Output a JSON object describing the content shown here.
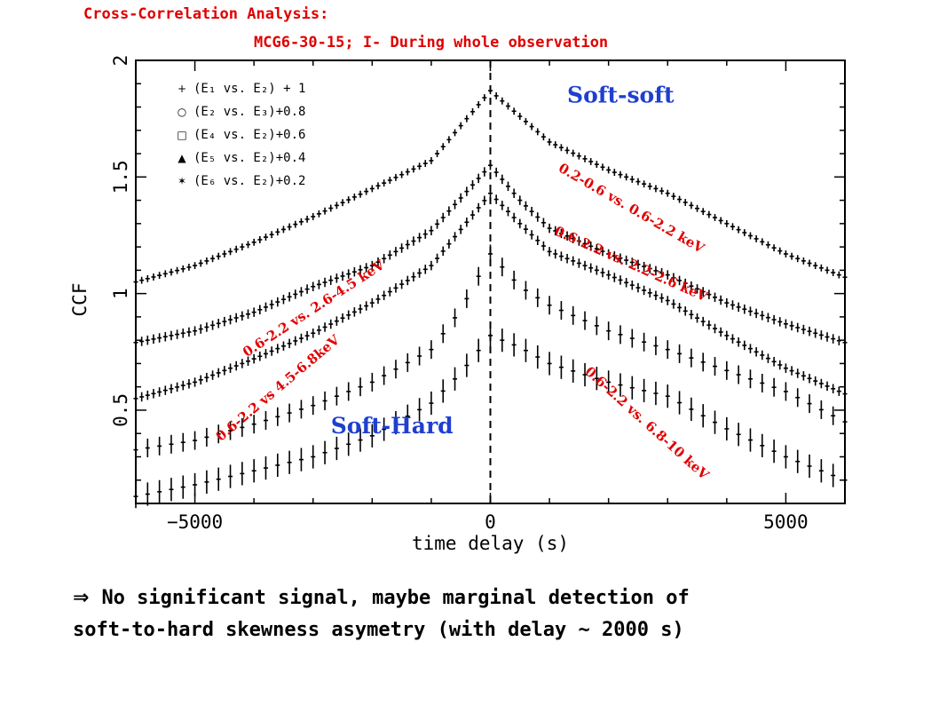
{
  "header": {
    "title_line1": "Cross-Correlation Analysis:",
    "title_line2": "MCG6-30-15; I- During whole observation"
  },
  "conclusion": {
    "arrow": "⇒",
    "line1": "No significant signal, maybe marginal detection of",
    "line2": "soft-to-hard skewness asymetry (with delay ~ 2000 s)"
  },
  "colors": {
    "annotation": "#e00000",
    "group_label": "#1f3fd0",
    "data": "#000000"
  },
  "chart_data": {
    "type": "scatter",
    "xlabel": "time delay (s)",
    "ylabel": "CCF",
    "xlim": [
      -6000,
      6000
    ],
    "ylim": [
      0.1,
      2.0
    ],
    "xticks": [
      -5000,
      0,
      5000
    ],
    "xtick_labels": [
      "−5000",
      "0",
      "5000"
    ],
    "yticks": [
      0.5,
      1.0,
      1.5,
      2.0
    ],
    "ytick_labels": [
      "0.5",
      "1",
      "1.5",
      "2"
    ],
    "vline_x": 0,
    "legend": {
      "position": "top-left",
      "entries": [
        {
          "marker": "+",
          "label": "(E₁ vs. E₂) + 1"
        },
        {
          "marker": "○",
          "label": "(E₂ vs. E₃)+0.8"
        },
        {
          "marker": "□",
          "label": "(E₄ vs. E₂)+0.6"
        },
        {
          "marker": "▲",
          "label": "(E₅ vs. E₂)+0.4"
        },
        {
          "marker": "✶",
          "label": "(E₆ vs. E₂)+0.2"
        }
      ]
    },
    "group_labels": [
      {
        "text": "Soft-soft",
        "x": 1300,
        "y": 1.82
      },
      {
        "text": "Soft-Hard",
        "x": -2700,
        "y": 0.4
      }
    ],
    "annotations": [
      {
        "text": "0.2-0.6 vs. 0.6-2.2 keV",
        "x": 2350,
        "y": 1.35,
        "angle": 30
      },
      {
        "text": "0.6-2.2 vs. 2.2-2.6 keV",
        "x": 2350,
        "y": 1.11,
        "angle": 24
      },
      {
        "text": "0.6-2.2 vs. 2.6-4.5 keV",
        "x": -2950,
        "y": 0.92,
        "angle": -33
      },
      {
        "text": "0.6-2.2 vs 4.5-6.8keV",
        "x": -3550,
        "y": 0.58,
        "angle": -40
      },
      {
        "text": "0.6-2.2 vs. 6.8-10 keV",
        "x": 2600,
        "y": 0.43,
        "angle": 42
      }
    ],
    "series": [
      {
        "marker": "+",
        "errorbar": 0.015,
        "x": [
          -6000,
          -5000,
          -4000,
          -3000,
          -2000,
          -1000,
          0,
          500,
          1000,
          2000,
          3000,
          4000,
          5000,
          6000
        ],
        "y": [
          1.05,
          1.12,
          1.22,
          1.33,
          1.45,
          1.57,
          1.87,
          1.76,
          1.65,
          1.53,
          1.43,
          1.3,
          1.17,
          1.07
        ]
      },
      {
        "marker": "○",
        "errorbar": 0.02,
        "x": [
          -6000,
          -5000,
          -4000,
          -3000,
          -2000,
          -1000,
          0,
          500,
          1000,
          2000,
          3000,
          4000,
          5000,
          6000
        ],
        "y": [
          0.79,
          0.84,
          0.92,
          1.03,
          1.12,
          1.27,
          1.55,
          1.4,
          1.28,
          1.17,
          1.08,
          0.96,
          0.87,
          0.79
        ]
      },
      {
        "marker": "□",
        "errorbar": 0.02,
        "x": [
          -6000,
          -5000,
          -4000,
          -3000,
          -2000,
          -1000,
          0,
          500,
          1000,
          2000,
          3000,
          4000,
          5000,
          6000
        ],
        "y": [
          0.55,
          0.62,
          0.72,
          0.83,
          0.96,
          1.12,
          1.43,
          1.3,
          1.18,
          1.08,
          0.97,
          0.82,
          0.68,
          0.57
        ]
      },
      {
        "marker": "▲",
        "errorbar": 0.04,
        "x": [
          -6000,
          -5000,
          -4000,
          -3000,
          -2000,
          -1000,
          -500,
          0,
          500,
          1000,
          2000,
          3000,
          4000,
          5000,
          6000
        ],
        "y": [
          0.33,
          0.37,
          0.44,
          0.52,
          0.62,
          0.76,
          0.93,
          1.17,
          1.03,
          0.95,
          0.84,
          0.76,
          0.67,
          0.58,
          0.45
        ]
      },
      {
        "marker": "✶",
        "errorbar": 0.05,
        "x": [
          -6000,
          -5000,
          -4000,
          -3000,
          -2000,
          -1000,
          -500,
          0,
          500,
          1000,
          2000,
          3000,
          4000,
          5000,
          6000
        ],
        "y": [
          0.13,
          0.18,
          0.24,
          0.3,
          0.39,
          0.53,
          0.66,
          0.82,
          0.77,
          0.7,
          0.62,
          0.56,
          0.42,
          0.3,
          0.2
        ]
      }
    ]
  }
}
